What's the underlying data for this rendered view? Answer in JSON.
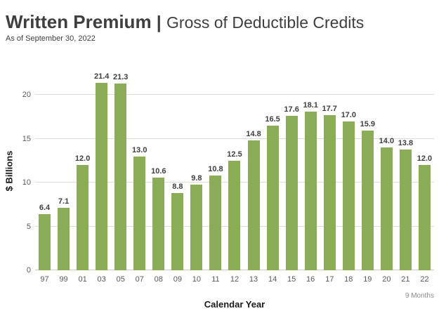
{
  "header": {
    "title_main": "Written Premium",
    "title_separator": "|",
    "title_sub": "Gross of Deductible Credits",
    "subtitle": "As of September 30, 2022"
  },
  "chart_data": {
    "type": "bar",
    "title": "Written Premium | Gross of Deductible Credits",
    "subtitle": "As of September 30, 2022",
    "categories": [
      "97",
      "99",
      "01",
      "03",
      "05",
      "07",
      "08",
      "09",
      "10",
      "11",
      "12",
      "13",
      "14",
      "15",
      "16",
      "17",
      "18",
      "19",
      "20",
      "21",
      "22"
    ],
    "values": [
      6.4,
      7.1,
      12.0,
      21.4,
      21.3,
      13.0,
      10.6,
      8.8,
      9.8,
      10.8,
      12.5,
      14.8,
      16.5,
      17.6,
      18.1,
      17.7,
      17.0,
      15.9,
      14.0,
      13.8,
      12.0
    ],
    "xlabel": "Calendar Year",
    "ylabel": "$ Billions",
    "ylim": [
      0,
      22.8
    ],
    "yticks": [
      0,
      5,
      10,
      15,
      20
    ],
    "grid": true,
    "legend": false,
    "bar_color": "#8cad58",
    "value_label_decimals": 1,
    "last_category_note": "9 Months"
  }
}
